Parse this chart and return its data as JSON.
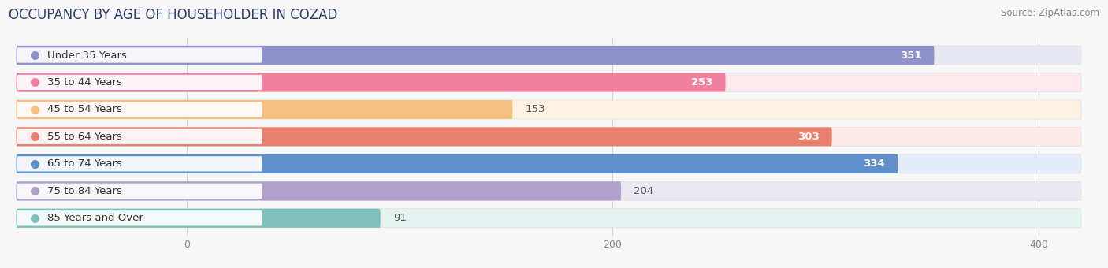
{
  "title": "OCCUPANCY BY AGE OF HOUSEHOLDER IN COZAD",
  "source": "Source: ZipAtlas.com",
  "categories": [
    "Under 35 Years",
    "35 to 44 Years",
    "45 to 54 Years",
    "55 to 64 Years",
    "65 to 74 Years",
    "75 to 84 Years",
    "85 Years and Over"
  ],
  "values": [
    351,
    253,
    153,
    303,
    334,
    204,
    91
  ],
  "bar_colors": [
    "#9090cc",
    "#f080a0",
    "#f5c080",
    "#e88070",
    "#6090cc",
    "#b0a0cc",
    "#80c0bc"
  ],
  "bar_bg_colors": [
    "#e8e8f2",
    "#fce8ed",
    "#fdf2e2",
    "#fce8e6",
    "#e4ecf8",
    "#ece8f2",
    "#e4f2f0"
  ],
  "label_dot_colors": [
    "#9090cc",
    "#f080a0",
    "#f5c080",
    "#e88070",
    "#6090cc",
    "#b0a0cc",
    "#80c0bc"
  ],
  "x_max_data": 420,
  "x_label_offset": 120,
  "value_label_white": [
    true,
    true,
    false,
    true,
    true,
    false,
    false
  ],
  "background_color": "#f7f7f8",
  "title_color": "#2c3e6b",
  "title_fontsize": 12,
  "source_fontsize": 8.5,
  "label_fontsize": 9.5,
  "value_fontsize": 9.5
}
